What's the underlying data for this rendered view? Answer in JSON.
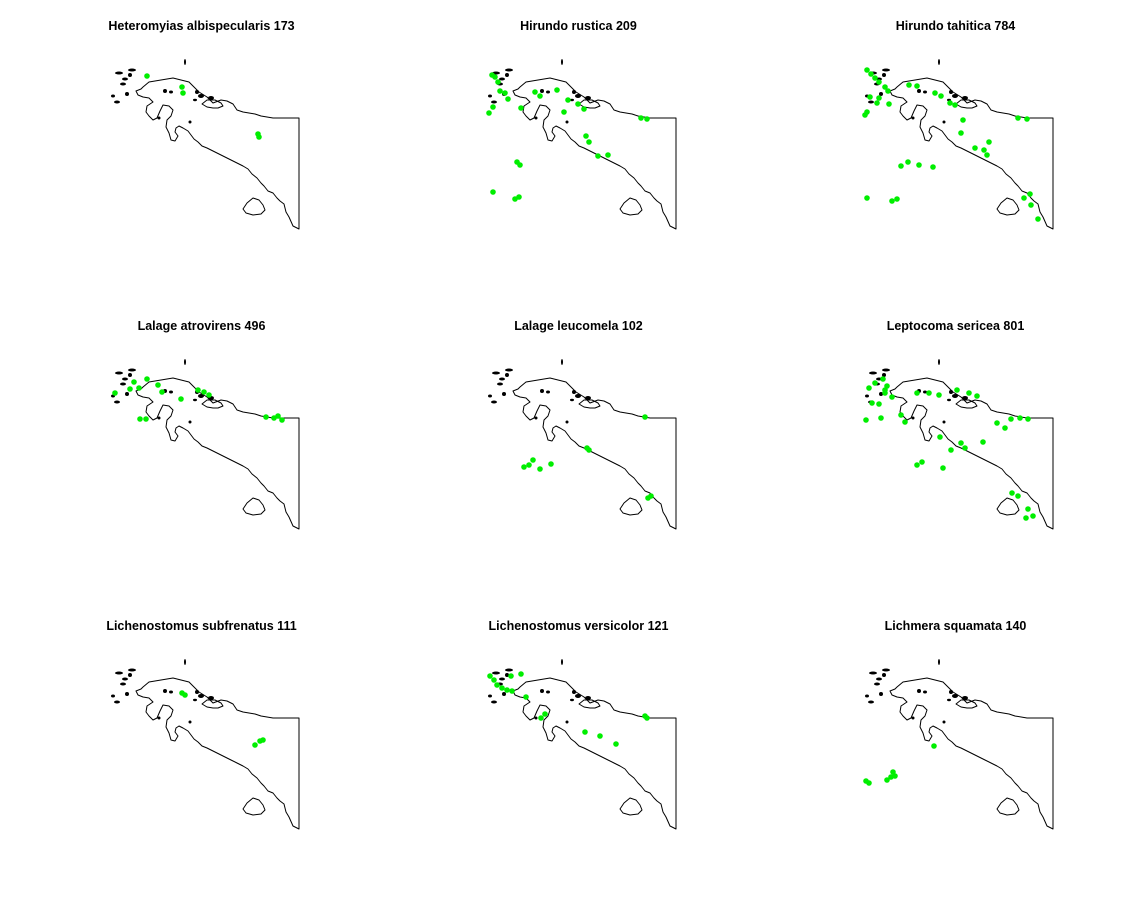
{
  "figure": {
    "panels": [
      {
        "title": "Heteromyias albispecularis 173",
        "points": [
          [
            44,
            76
          ],
          [
            79,
            87
          ],
          [
            80,
            93
          ],
          [
            155,
            134
          ],
          [
            156,
            137
          ]
        ]
      },
      {
        "title": "Hirundo rustica 209",
        "points": [
          [
            12,
            75
          ],
          [
            15,
            77
          ],
          [
            18,
            82
          ],
          [
            20,
            91
          ],
          [
            25,
            93
          ],
          [
            28,
            99
          ],
          [
            13,
            107
          ],
          [
            9,
            113
          ],
          [
            41,
            108
          ],
          [
            55,
            92
          ],
          [
            60,
            96
          ],
          [
            77,
            90
          ],
          [
            88,
            100
          ],
          [
            84,
            112
          ],
          [
            98,
            104
          ],
          [
            104,
            109
          ],
          [
            106,
            136
          ],
          [
            109,
            142
          ],
          [
            118,
            156
          ],
          [
            128,
            155
          ],
          [
            161,
            118
          ],
          [
            167,
            119
          ],
          [
            37,
            162
          ],
          [
            40,
            165
          ],
          [
            13,
            192
          ],
          [
            35,
            199
          ],
          [
            39,
            197
          ]
        ]
      },
      {
        "title": "Hirundo tahitica 784",
        "points": [
          [
            10,
            70
          ],
          [
            14,
            74
          ],
          [
            18,
            78
          ],
          [
            22,
            82
          ],
          [
            28,
            87
          ],
          [
            31,
            91
          ],
          [
            13,
            97
          ],
          [
            22,
            98
          ],
          [
            20,
            103
          ],
          [
            32,
            104
          ],
          [
            10,
            112
          ],
          [
            8,
            115
          ],
          [
            52,
            85
          ],
          [
            60,
            86
          ],
          [
            78,
            93
          ],
          [
            84,
            96
          ],
          [
            93,
            103
          ],
          [
            98,
            105
          ],
          [
            106,
            120
          ],
          [
            104,
            133
          ],
          [
            132,
            142
          ],
          [
            127,
            150
          ],
          [
            130,
            155
          ],
          [
            118,
            148
          ],
          [
            161,
            118
          ],
          [
            170,
            119
          ],
          [
            44,
            166
          ],
          [
            51,
            162
          ],
          [
            62,
            165
          ],
          [
            76,
            167
          ],
          [
            10,
            198
          ],
          [
            35,
            201
          ],
          [
            40,
            199
          ],
          [
            167,
            198
          ],
          [
            174,
            205
          ],
          [
            181,
            219
          ],
          [
            173,
            194
          ]
        ]
      },
      {
        "title": "Lalage atrovirens 496",
        "points": [
          [
            12,
            93
          ],
          [
            27,
            89
          ],
          [
            31,
            82
          ],
          [
            36,
            88
          ],
          [
            44,
            79
          ],
          [
            55,
            85
          ],
          [
            59,
            92
          ],
          [
            78,
            99
          ],
          [
            95,
            90
          ],
          [
            101,
            92
          ],
          [
            106,
            95
          ],
          [
            37,
            119
          ],
          [
            43,
            119
          ],
          [
            163,
            117
          ],
          [
            171,
            118
          ],
          [
            175,
            116
          ],
          [
            179,
            120
          ]
        ]
      },
      {
        "title": "Lalage leucomela 102",
        "points": [
          [
            49,
            165
          ],
          [
            53,
            160
          ],
          [
            44,
            167
          ],
          [
            60,
            169
          ],
          [
            71,
            164
          ],
          [
            107,
            148
          ],
          [
            109,
            150
          ],
          [
            165,
            117
          ],
          [
            168,
            198
          ],
          [
            171,
            196
          ]
        ]
      },
      {
        "title": "Leptocoma sericea 801",
        "points": [
          [
            9,
            120
          ],
          [
            12,
            88
          ],
          [
            18,
            83
          ],
          [
            26,
            79
          ],
          [
            30,
            86
          ],
          [
            28,
            90
          ],
          [
            15,
            103
          ],
          [
            22,
            104
          ],
          [
            28,
            93
          ],
          [
            35,
            97
          ],
          [
            24,
            118
          ],
          [
            44,
            115
          ],
          [
            48,
            122
          ],
          [
            60,
            93
          ],
          [
            72,
            93
          ],
          [
            82,
            95
          ],
          [
            100,
            90
          ],
          [
            112,
            93
          ],
          [
            120,
            96
          ],
          [
            83,
            137
          ],
          [
            94,
            150
          ],
          [
            104,
            143
          ],
          [
            108,
            148
          ],
          [
            126,
            142
          ],
          [
            140,
            123
          ],
          [
            148,
            128
          ],
          [
            154,
            119
          ],
          [
            163,
            118
          ],
          [
            171,
            119
          ],
          [
            60,
            165
          ],
          [
            65,
            162
          ],
          [
            86,
            168
          ],
          [
            155,
            193
          ],
          [
            161,
            196
          ],
          [
            171,
            209
          ],
          [
            176,
            216
          ],
          [
            169,
            218
          ]
        ]
      },
      {
        "title": "Lichenostomus subfrenatus 111",
        "points": [
          [
            79,
            93
          ],
          [
            82,
            95
          ],
          [
            152,
            145
          ],
          [
            157,
            141
          ],
          [
            160,
            140
          ]
        ]
      },
      {
        "title": "Lichenostomus versicolor 121",
        "points": [
          [
            10,
            76
          ],
          [
            14,
            80
          ],
          [
            17,
            85
          ],
          [
            22,
            88
          ],
          [
            27,
            90
          ],
          [
            32,
            91
          ],
          [
            31,
            76
          ],
          [
            41,
            74
          ],
          [
            46,
            97
          ],
          [
            61,
            118
          ],
          [
            65,
            114
          ],
          [
            105,
            132
          ],
          [
            120,
            136
          ],
          [
            136,
            144
          ],
          [
            165,
            116
          ],
          [
            167,
            118
          ]
        ]
      },
      {
        "title": "Lichmera squamata 140",
        "points": [
          [
            9,
            181
          ],
          [
            12,
            183
          ],
          [
            36,
            172
          ],
          [
            30,
            180
          ],
          [
            34,
            177
          ],
          [
            38,
            176
          ],
          [
            77,
            146
          ]
        ]
      }
    ],
    "point_color": "#00ee00",
    "outline_color": "#000000"
  }
}
